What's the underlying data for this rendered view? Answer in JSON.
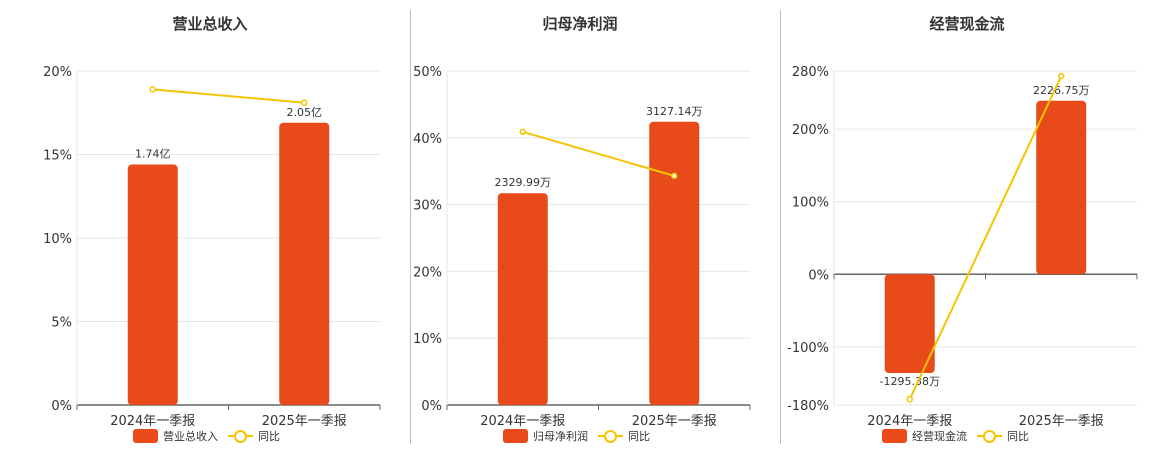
{
  "colors": {
    "bar": "#E84A1A",
    "line": "#F5C400",
    "grid": "#e6e6e6",
    "axis": "#666666"
  },
  "chart_data": [
    {
      "type": "bar",
      "title": "营业总收入",
      "categories": [
        "2024年一季报",
        "2025年一季报"
      ],
      "ylim": [
        0,
        20
      ],
      "yticks": [
        "0%",
        "5%",
        "10%",
        "15%",
        "20%"
      ],
      "yticks_values": [
        0,
        5,
        10,
        15,
        20
      ],
      "series": [
        {
          "name": "营业总收入",
          "kind": "bar",
          "values": [
            14.4,
            16.9
          ],
          "labels": [
            "1.74亿",
            "2.05亿"
          ]
        },
        {
          "name": "同比",
          "kind": "line",
          "values": [
            18.9,
            18.1
          ]
        }
      ],
      "legend": [
        "营业总收入",
        "同比"
      ],
      "legend_position": "bottom"
    },
    {
      "type": "bar",
      "title": "归母净利润",
      "categories": [
        "2024年一季报",
        "2025年一季报"
      ],
      "ylim": [
        0,
        50
      ],
      "yticks": [
        "0%",
        "10%",
        "20%",
        "30%",
        "40%",
        "50%"
      ],
      "yticks_values": [
        0,
        10,
        20,
        30,
        40,
        50
      ],
      "series": [
        {
          "name": "归母净利润",
          "kind": "bar",
          "values": [
            31.7,
            42.4
          ],
          "labels": [
            "2329.99万",
            "3127.14万"
          ]
        },
        {
          "name": "同比",
          "kind": "line",
          "values": [
            40.9,
            34.3
          ]
        }
      ],
      "legend": [
        "归母净利润",
        "同比"
      ],
      "legend_position": "bottom"
    },
    {
      "type": "bar",
      "title": "经营现金流",
      "categories": [
        "2024年一季报",
        "2025年一季报"
      ],
      "ylim": [
        -180,
        280
      ],
      "yticks": [
        "-180%",
        "-100%",
        "0%",
        "100%",
        "200%",
        "280%"
      ],
      "yticks_values": [
        -180,
        -100,
        0,
        100,
        200,
        280
      ],
      "series": [
        {
          "name": "经营现金流",
          "kind": "bar",
          "values": [
            -136,
            239
          ],
          "labels": [
            "-1295.38万",
            "2226.75万"
          ]
        },
        {
          "name": "同比",
          "kind": "line",
          "values": [
            -172,
            273
          ]
        }
      ],
      "legend": [
        "经营现金流",
        "同比"
      ],
      "legend_position": "bottom"
    }
  ]
}
